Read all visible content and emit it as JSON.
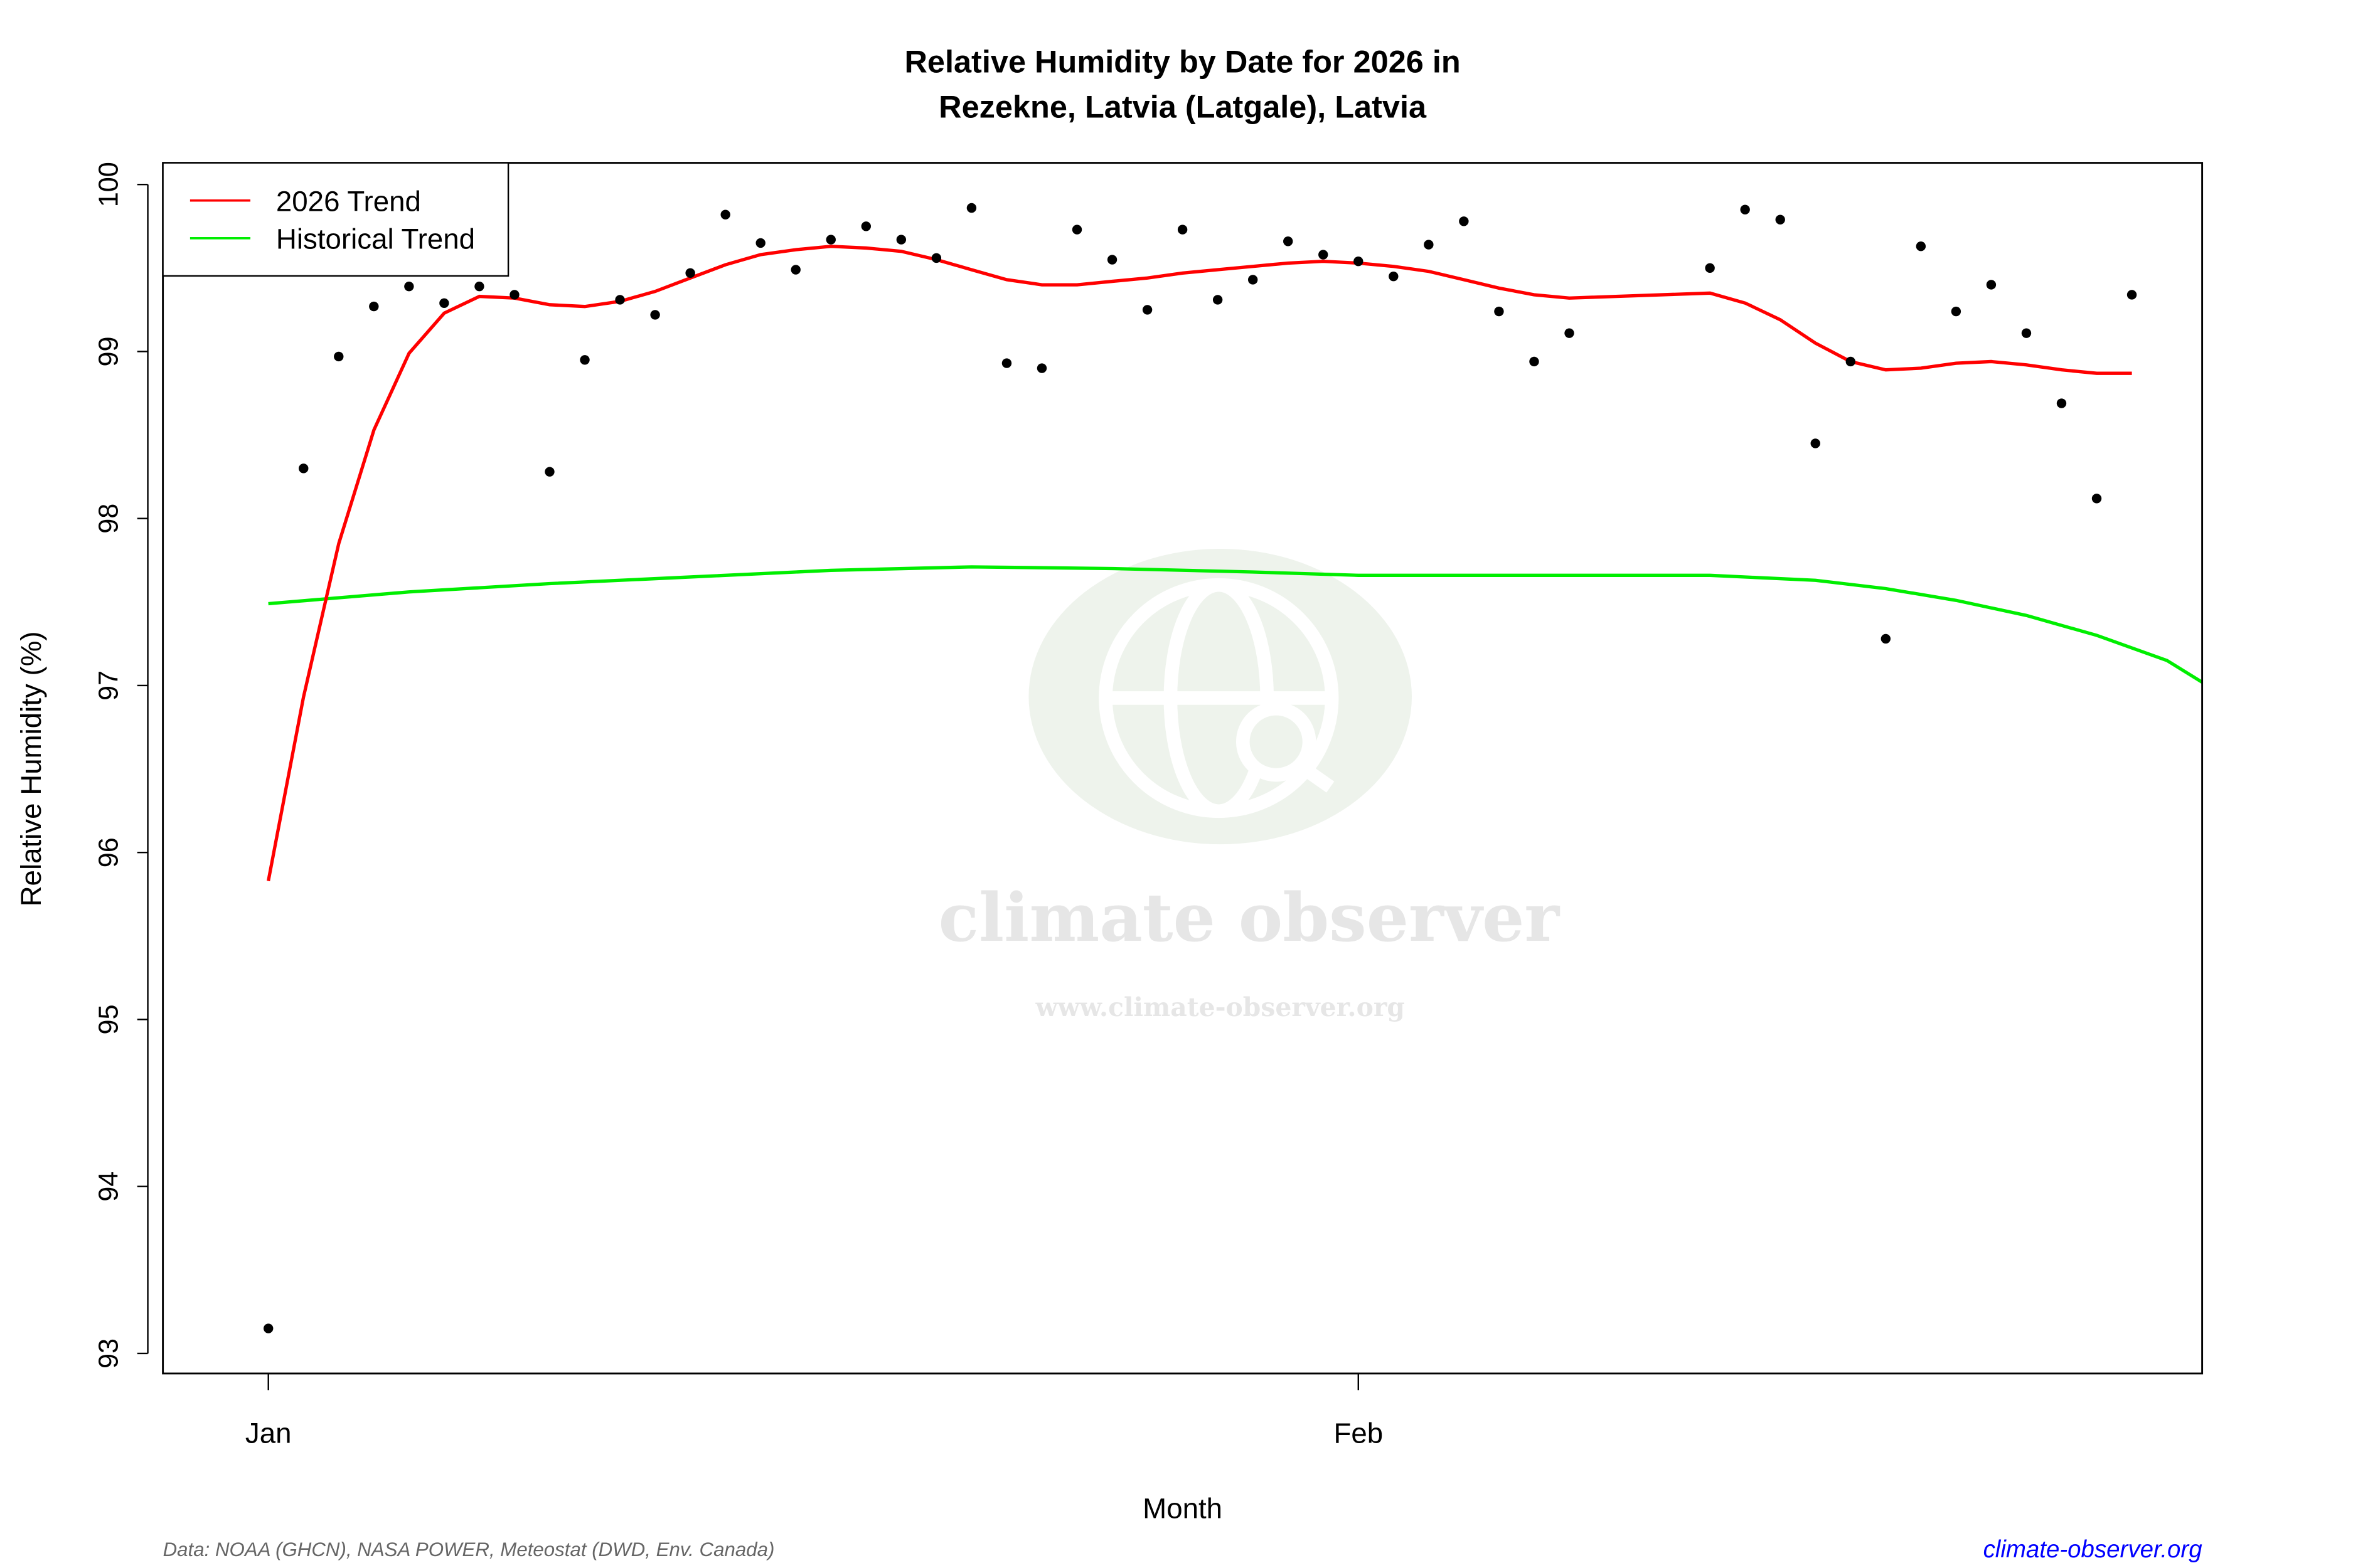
{
  "chart_data": {
    "type": "scatter",
    "title": "Relative Humidity by Date for 2026 in",
    "subtitle": "Rezekne, Latvia (Latgale), Latvia",
    "xlabel": "Month",
    "ylabel": "Relative Humidity (%)",
    "x_ticks": [
      {
        "label": "Jan",
        "date": "2026-01-01"
      },
      {
        "label": "Feb",
        "date": "2026-02-01"
      }
    ],
    "y_ticks": [
      93,
      94,
      95,
      96,
      97,
      98,
      99,
      100
    ],
    "ylim": [
      92.88,
      100.13
    ],
    "xlim": [
      "2025-12-29",
      "2026-02-25"
    ],
    "grid": false,
    "legend": {
      "placement": "top-left",
      "entries": [
        {
          "name": "2026 Trend",
          "color": "#ff0000"
        },
        {
          "name": "Historical Trend",
          "color": "#00ee00"
        }
      ]
    },
    "points": [
      {
        "date": "2026-01-01",
        "value": 93.15
      },
      {
        "date": "2026-01-02",
        "value": 98.3
      },
      {
        "date": "2026-01-03",
        "value": 98.97
      },
      {
        "date": "2026-01-04",
        "value": 99.27
      },
      {
        "date": "2026-01-05",
        "value": 99.39
      },
      {
        "date": "2026-01-06",
        "value": 99.29
      },
      {
        "date": "2026-01-07",
        "value": 99.39
      },
      {
        "date": "2026-01-08",
        "value": 99.34
      },
      {
        "date": "2026-01-09",
        "value": 98.28
      },
      {
        "date": "2026-01-10",
        "value": 98.95
      },
      {
        "date": "2026-01-11",
        "value": 99.31
      },
      {
        "date": "2026-01-12",
        "value": 99.22
      },
      {
        "date": "2026-01-13",
        "value": 99.47
      },
      {
        "date": "2026-01-14",
        "value": 99.82
      },
      {
        "date": "2026-01-15",
        "value": 99.65
      },
      {
        "date": "2026-01-16",
        "value": 99.49
      },
      {
        "date": "2026-01-17",
        "value": 99.67
      },
      {
        "date": "2026-01-18",
        "value": 99.75
      },
      {
        "date": "2026-01-19",
        "value": 99.67
      },
      {
        "date": "2026-01-20",
        "value": 99.56
      },
      {
        "date": "2026-01-21",
        "value": 99.86
      },
      {
        "date": "2026-01-22",
        "value": 98.93
      },
      {
        "date": "2026-01-23",
        "value": 98.9
      },
      {
        "date": "2026-01-24",
        "value": 99.73
      },
      {
        "date": "2026-01-25",
        "value": 99.55
      },
      {
        "date": "2026-01-26",
        "value": 99.25
      },
      {
        "date": "2026-01-27",
        "value": 99.73
      },
      {
        "date": "2026-01-28",
        "value": 99.31
      },
      {
        "date": "2026-01-29",
        "value": 99.43
      },
      {
        "date": "2026-01-30",
        "value": 99.66
      },
      {
        "date": "2026-01-31",
        "value": 99.58
      },
      {
        "date": "2026-02-01",
        "value": 99.54
      },
      {
        "date": "2026-02-02",
        "value": 99.45
      },
      {
        "date": "2026-02-03",
        "value": 99.64
      },
      {
        "date": "2026-02-04",
        "value": 99.78
      },
      {
        "date": "2026-02-05",
        "value": 99.24
      },
      {
        "date": "2026-02-06",
        "value": 98.94
      },
      {
        "date": "2026-02-07",
        "value": 99.11
      },
      {
        "date": "2026-02-11",
        "value": 99.5
      },
      {
        "date": "2026-02-12",
        "value": 99.85
      },
      {
        "date": "2026-02-13",
        "value": 99.79
      },
      {
        "date": "2026-02-14",
        "value": 98.45
      },
      {
        "date": "2026-02-15",
        "value": 98.94
      },
      {
        "date": "2026-02-16",
        "value": 97.28
      },
      {
        "date": "2026-02-17",
        "value": 99.63
      },
      {
        "date": "2026-02-18",
        "value": 99.24
      },
      {
        "date": "2026-02-19",
        "value": 99.4
      },
      {
        "date": "2026-02-20",
        "value": 99.11
      },
      {
        "date": "2026-02-21",
        "value": 98.69
      },
      {
        "date": "2026-02-22",
        "value": 98.12
      },
      {
        "date": "2026-02-23",
        "value": 99.34
      }
    ],
    "series": [
      {
        "name": "2026 Trend",
        "color": "#ff0000",
        "data": [
          [
            "2026-01-01",
            95.83
          ],
          [
            "2026-01-02",
            96.93
          ],
          [
            "2026-01-03",
            97.85
          ],
          [
            "2026-01-04",
            98.53
          ],
          [
            "2026-01-05",
            98.99
          ],
          [
            "2026-01-06",
            99.23
          ],
          [
            "2026-01-07",
            99.33
          ],
          [
            "2026-01-08",
            99.32
          ],
          [
            "2026-01-09",
            99.28
          ],
          [
            "2026-01-10",
            99.27
          ],
          [
            "2026-01-11",
            99.3
          ],
          [
            "2026-01-12",
            99.36
          ],
          [
            "2026-01-13",
            99.44
          ],
          [
            "2026-01-14",
            99.52
          ],
          [
            "2026-01-15",
            99.58
          ],
          [
            "2026-01-16",
            99.61
          ],
          [
            "2026-01-17",
            99.63
          ],
          [
            "2026-01-18",
            99.62
          ],
          [
            "2026-01-19",
            99.6
          ],
          [
            "2026-01-20",
            99.55
          ],
          [
            "2026-01-21",
            99.49
          ],
          [
            "2026-01-22",
            99.43
          ],
          [
            "2026-01-23",
            99.4
          ],
          [
            "2026-01-24",
            99.4
          ],
          [
            "2026-01-25",
            99.42
          ],
          [
            "2026-01-26",
            99.44
          ],
          [
            "2026-01-27",
            99.47
          ],
          [
            "2026-01-28",
            99.49
          ],
          [
            "2026-01-29",
            99.51
          ],
          [
            "2026-01-30",
            99.53
          ],
          [
            "2026-01-31",
            99.54
          ],
          [
            "2026-02-01",
            99.53
          ],
          [
            "2026-02-02",
            99.51
          ],
          [
            "2026-02-03",
            99.48
          ],
          [
            "2026-02-04",
            99.43
          ],
          [
            "2026-02-05",
            99.38
          ],
          [
            "2026-02-06",
            99.34
          ],
          [
            "2026-02-07",
            99.32
          ],
          [
            "2026-02-11",
            99.35
          ],
          [
            "2026-02-12",
            99.29
          ],
          [
            "2026-02-13",
            99.19
          ],
          [
            "2026-02-14",
            99.05
          ],
          [
            "2026-02-15",
            98.94
          ],
          [
            "2026-02-16",
            98.89
          ],
          [
            "2026-02-17",
            98.9
          ],
          [
            "2026-02-18",
            98.93
          ],
          [
            "2026-02-19",
            98.94
          ],
          [
            "2026-02-20",
            98.92
          ],
          [
            "2026-02-21",
            98.89
          ],
          [
            "2026-02-22",
            98.87
          ],
          [
            "2026-02-23",
            98.87
          ]
        ]
      },
      {
        "name": "Historical Trend",
        "color": "#00ee00",
        "data": [
          [
            "2026-01-01",
            97.49
          ],
          [
            "2026-01-05",
            97.56
          ],
          [
            "2026-01-09",
            97.61
          ],
          [
            "2026-01-13",
            97.65
          ],
          [
            "2026-01-17",
            97.69
          ],
          [
            "2026-01-21",
            97.71
          ],
          [
            "2026-01-25",
            97.7
          ],
          [
            "2026-01-29",
            97.68
          ],
          [
            "2026-02-01",
            97.66
          ],
          [
            "2026-02-05",
            97.66
          ],
          [
            "2026-02-11",
            97.66
          ],
          [
            "2026-02-14",
            97.63
          ],
          [
            "2026-02-16",
            97.58
          ],
          [
            "2026-02-18",
            97.51
          ],
          [
            "2026-02-20",
            97.42
          ],
          [
            "2026-02-22",
            97.3
          ],
          [
            "2026-02-24",
            97.15
          ],
          [
            "2026-02-25",
            97.02
          ]
        ]
      }
    ]
  },
  "footer": {
    "source": "Data: NOAA (GHCN), NASA POWER, Meteostat (DWD, Env. Canada)",
    "site_link": "climate-observer.org"
  },
  "watermark": {
    "name": "climate observer",
    "url": "www.climate-observer.org"
  }
}
